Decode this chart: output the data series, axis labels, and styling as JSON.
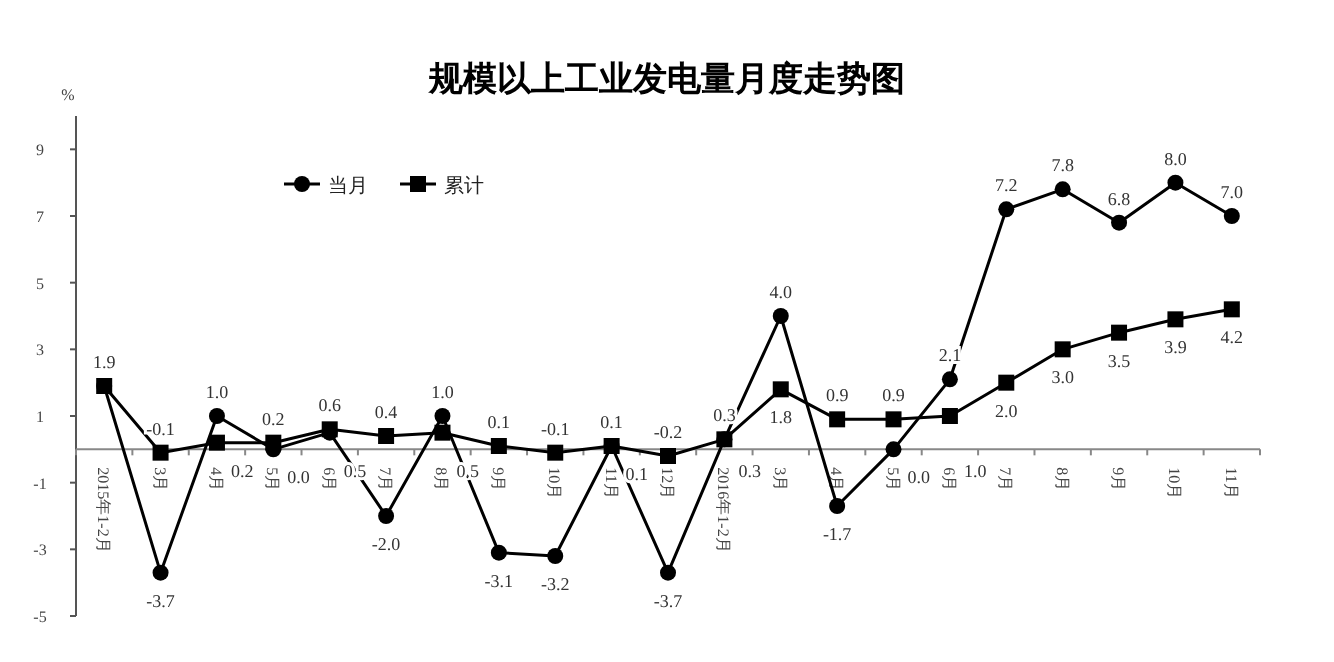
{
  "chart_data": {
    "type": "line",
    "title": "规模以上工业发电量月度走势图",
    "ylabel": "%",
    "categories": [
      "2015年1-2月",
      "3月",
      "4月",
      "5月",
      "6月",
      "7月",
      "8月",
      "9月",
      "10月",
      "11月",
      "12月",
      "2016年1-2月",
      "3月",
      "4月",
      "5月",
      "6月",
      "7月",
      "8月",
      "9月",
      "10月",
      "11月"
    ],
    "series": [
      {
        "name": "当月",
        "color": "#000000",
        "marker": "circle",
        "values": [
          1.9,
          -3.7,
          1.0,
          0.0,
          0.5,
          -2.0,
          1.0,
          -3.1,
          -3.2,
          0.1,
          -3.7,
          0.3,
          4.0,
          -1.7,
          0.0,
          2.1,
          7.2,
          7.8,
          6.8,
          8.0,
          7.0
        ],
        "value_labels": [
          "1.9",
          "-3.7",
          "1.0",
          "0.0",
          "0.5",
          "-2.0",
          "1.0",
          "-3.1",
          "-3.2",
          "0.1",
          "-3.7",
          "0.3",
          "4.0",
          "-1.7",
          "0.0",
          "2.1",
          "7.2",
          "7.8",
          "6.8",
          "8.0",
          "7.0"
        ]
      },
      {
        "name": "累计",
        "color": "#000000",
        "marker": "square",
        "values": [
          1.9,
          -0.1,
          0.2,
          0.2,
          0.6,
          0.4,
          0.5,
          0.1,
          -0.1,
          0.1,
          -0.2,
          0.3,
          1.8,
          0.9,
          0.9,
          1.0,
          2.0,
          3.0,
          3.5,
          3.9,
          4.2
        ],
        "value_labels": [
          null,
          "-0.1",
          "0.2",
          "0.2",
          "0.6",
          "0.4",
          "0.5",
          "0.1",
          "-0.1",
          "0.1",
          "-0.2",
          "0.3",
          "1.8",
          "0.9",
          "0.9",
          "1.0",
          "2.0",
          "3.0",
          "3.5",
          "3.9",
          "4.2"
        ]
      }
    ],
    "ylim": [
      -5,
      10
    ],
    "yticks": [
      -5,
      -3,
      -1,
      1,
      3,
      5,
      7,
      9
    ],
    "legend": "top left",
    "grid": false
  }
}
